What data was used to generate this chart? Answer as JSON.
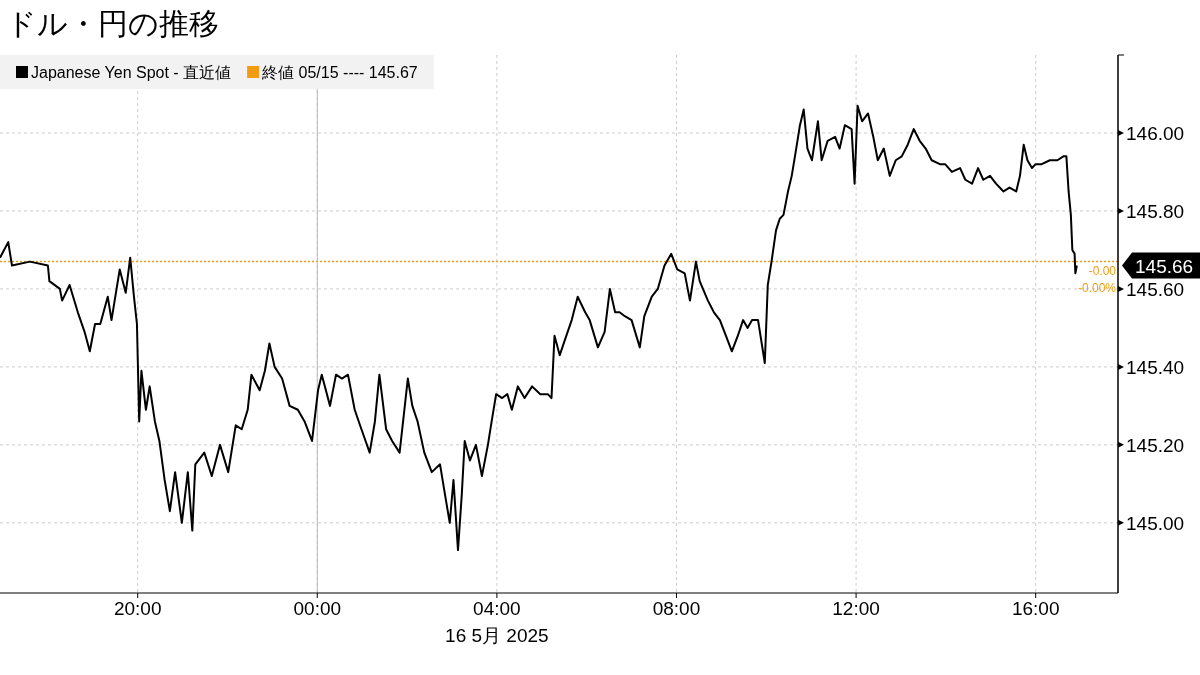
{
  "chart_data": {
    "type": "line",
    "title": "ドル・円の推移",
    "xlabel": "16 5月 2025",
    "xlim": [
      "2025-05-15T16:56",
      "2025-05-16T17:50"
    ],
    "ylim": [
      144.82,
      146.2
    ],
    "xticks": [
      {
        "value": "2025-05-15T20:00",
        "label": "20:00"
      },
      {
        "value": "2025-05-16T00:00",
        "label": "00:00"
      },
      {
        "value": "2025-05-16T04:00",
        "label": "04:00"
      },
      {
        "value": "2025-05-16T08:00",
        "label": "08:00"
      },
      {
        "value": "2025-05-16T12:00",
        "label": "12:00"
      },
      {
        "value": "2025-05-16T16:00",
        "label": "16:00"
      }
    ],
    "yticks": [
      {
        "value": 145,
        "label": "145.00"
      },
      {
        "value": 145.2,
        "label": "145.20"
      },
      {
        "value": 145.4,
        "label": "145.40"
      },
      {
        "value": 145.6,
        "label": "145.60"
      },
      {
        "value": 145.8,
        "label": "145.80"
      },
      {
        "value": 146,
        "label": "146.00"
      }
    ],
    "grid": true,
    "legend": "top left",
    "line_style": "solid",
    "marker": "none",
    "series": [
      {
        "name": "Japanese Yen Spot - 直近値",
        "color": "#000000",
        "x": [
          "2025-05-15T16:56",
          "2025-05-15T17:07",
          "2025-05-15T17:12",
          "2025-05-15T17:36",
          "2025-05-15T18:00",
          "2025-05-15T18:02",
          "2025-05-15T18:16",
          "2025-05-15T18:19",
          "2025-05-15T18:29",
          "2025-05-15T18:40",
          "2025-05-15T18:49",
          "2025-05-15T18:56",
          "2025-05-15T19:03",
          "2025-05-15T19:10",
          "2025-05-15T19:20",
          "2025-05-15T19:25",
          "2025-05-15T19:36",
          "2025-05-15T19:44",
          "2025-05-15T19:50",
          "2025-05-15T19:55",
          "2025-05-15T19:59",
          "2025-05-15T20:02",
          "2025-05-15T20:05",
          "2025-05-15T20:11",
          "2025-05-15T20:16",
          "2025-05-15T20:23",
          "2025-05-15T20:29",
          "2025-05-15T20:36",
          "2025-05-15T20:43",
          "2025-05-15T20:50",
          "2025-05-15T20:59",
          "2025-05-15T21:07",
          "2025-05-15T21:13",
          "2025-05-15T21:17",
          "2025-05-15T21:29",
          "2025-05-15T21:39",
          "2025-05-15T21:50",
          "2025-05-15T22:01",
          "2025-05-15T22:11",
          "2025-05-15T22:19",
          "2025-05-15T22:27",
          "2025-05-15T22:32",
          "2025-05-15T22:43",
          "2025-05-15T22:50",
          "2025-05-15T22:56",
          "2025-05-15T23:03",
          "2025-05-15T23:13",
          "2025-05-15T23:23",
          "2025-05-15T23:34",
          "2025-05-15T23:43",
          "2025-05-15T23:53",
          "2025-05-16T00:01",
          "2025-05-16T00:06",
          "2025-05-16T00:17",
          "2025-05-16T00:25",
          "2025-05-16T00:33",
          "2025-05-16T00:41",
          "2025-05-16T00:50",
          "2025-05-16T00:59",
          "2025-05-16T01:10",
          "2025-05-16T01:17",
          "2025-05-16T01:23",
          "2025-05-16T01:32",
          "2025-05-16T01:40",
          "2025-05-16T01:50",
          "2025-05-16T02:01",
          "2025-05-16T02:07",
          "2025-05-16T02:14",
          "2025-05-16T02:23",
          "2025-05-16T02:33",
          "2025-05-16T02:44",
          "2025-05-16T02:50",
          "2025-05-16T02:57",
          "2025-05-16T03:02",
          "2025-05-16T03:08",
          "2025-05-16T03:13",
          "2025-05-16T03:17",
          "2025-05-16T03:24",
          "2025-05-16T03:32",
          "2025-05-16T03:40",
          "2025-05-16T03:48",
          "2025-05-16T03:53",
          "2025-05-16T03:59",
          "2025-05-16T04:07",
          "2025-05-16T04:14",
          "2025-05-16T04:20",
          "2025-05-16T04:28",
          "2025-05-16T04:37",
          "2025-05-16T04:47",
          "2025-05-16T04:58",
          "2025-05-16T05:08",
          "2025-05-16T05:13",
          "2025-05-16T05:17",
          "2025-05-16T05:24",
          "2025-05-16T05:31",
          "2025-05-16T05:40",
          "2025-05-16T05:48",
          "2025-05-16T05:58",
          "2025-05-16T06:04",
          "2025-05-16T06:15",
          "2025-05-16T06:24",
          "2025-05-16T06:31",
          "2025-05-16T06:38",
          "2025-05-16T06:44",
          "2025-05-16T06:51",
          "2025-05-16T07:00",
          "2025-05-16T07:11",
          "2025-05-16T07:17",
          "2025-05-16T07:27",
          "2025-05-16T07:35",
          "2025-05-16T07:44",
          "2025-05-16T07:53",
          "2025-05-16T08:01",
          "2025-05-16T08:11",
          "2025-05-16T08:18",
          "2025-05-16T08:26",
          "2025-05-16T08:31",
          "2025-05-16T08:42",
          "2025-05-16T08:50",
          "2025-05-16T08:58",
          "2025-05-16T09:06",
          "2025-05-16T09:14",
          "2025-05-16T09:22",
          "2025-05-16T09:29",
          "2025-05-16T09:35",
          "2025-05-16T09:41",
          "2025-05-16T09:49",
          "2025-05-16T09:58",
          "2025-05-16T10:02",
          "2025-05-16T10:07",
          "2025-05-16T10:13",
          "2025-05-16T10:18",
          "2025-05-16T10:23",
          "2025-05-16T10:29",
          "2025-05-16T10:34",
          "2025-05-16T10:40",
          "2025-05-16T10:45",
          "2025-05-16T10:50",
          "2025-05-16T10:55",
          "2025-05-16T11:01",
          "2025-05-16T11:09",
          "2025-05-16T11:14",
          "2025-05-16T11:22",
          "2025-05-16T11:32",
          "2025-05-16T11:38",
          "2025-05-16T11:45",
          "2025-05-16T11:54",
          "2025-05-16T11:58",
          "2025-05-16T12:02",
          "2025-05-16T12:08",
          "2025-05-16T12:16",
          "2025-05-16T12:23",
          "2025-05-16T12:29",
          "2025-05-16T12:37",
          "2025-05-16T12:45",
          "2025-05-16T12:53",
          "2025-05-16T13:01",
          "2025-05-16T13:09",
          "2025-05-16T13:17",
          "2025-05-16T13:25",
          "2025-05-16T13:33",
          "2025-05-16T13:41",
          "2025-05-16T13:52",
          "2025-05-16T13:59",
          "2025-05-16T14:08",
          "2025-05-16T14:19",
          "2025-05-16T14:26",
          "2025-05-16T14:35",
          "2025-05-16T14:43",
          "2025-05-16T14:50",
          "2025-05-16T14:59",
          "2025-05-16T15:07",
          "2025-05-16T15:17",
          "2025-05-16T15:25",
          "2025-05-16T15:34",
          "2025-05-16T15:39",
          "2025-05-16T15:44",
          "2025-05-16T15:49",
          "2025-05-16T15:55",
          "2025-05-16T16:00",
          "2025-05-16T16:08",
          "2025-05-16T16:19",
          "2025-05-16T16:29",
          "2025-05-16T16:37",
          "2025-05-16T16:41",
          "2025-05-16T16:44",
          "2025-05-16T16:47",
          "2025-05-16T16:49",
          "2025-05-16T16:52",
          "2025-05-16T16:53",
          "2025-05-16T16:55"
        ],
        "values": [
          145.68,
          145.72,
          145.66,
          145.67,
          145.66,
          145.62,
          145.6,
          145.57,
          145.61,
          145.54,
          145.49,
          145.44,
          145.51,
          145.51,
          145.58,
          145.52,
          145.65,
          145.59,
          145.68,
          145.58,
          145.51,
          145.26,
          145.39,
          145.29,
          145.35,
          145.26,
          145.21,
          145.11,
          145.03,
          145.13,
          145.0,
          145.13,
          144.98,
          145.15,
          145.18,
          145.12,
          145.2,
          145.13,
          145.25,
          145.24,
          145.29,
          145.38,
          145.34,
          145.39,
          145.46,
          145.4,
          145.37,
          145.3,
          145.29,
          145.26,
          145.21,
          145.34,
          145.38,
          145.3,
          145.38,
          145.37,
          145.38,
          145.29,
          145.24,
          145.18,
          145.26,
          145.38,
          145.24,
          145.21,
          145.18,
          145.37,
          145.3,
          145.26,
          145.18,
          145.13,
          145.15,
          145.08,
          145.0,
          145.11,
          144.93,
          145.07,
          145.21,
          145.16,
          145.2,
          145.12,
          145.2,
          145.26,
          145.33,
          145.32,
          145.33,
          145.29,
          145.35,
          145.32,
          145.35,
          145.33,
          145.33,
          145.32,
          145.48,
          145.43,
          145.47,
          145.52,
          145.58,
          145.54,
          145.52,
          145.45,
          145.49,
          145.6,
          145.54,
          145.54,
          145.53,
          145.52,
          145.45,
          145.53,
          145.58,
          145.6,
          145.66,
          145.69,
          145.65,
          145.64,
          145.57,
          145.67,
          145.62,
          145.57,
          145.54,
          145.52,
          145.48,
          145.44,
          145.48,
          145.52,
          145.5,
          145.52,
          145.52,
          145.41,
          145.61,
          145.67,
          145.75,
          145.78,
          145.79,
          145.85,
          145.89,
          145.96,
          146.02,
          146.06,
          145.96,
          145.93,
          146.03,
          145.93,
          145.98,
          145.99,
          145.96,
          146.02,
          146.01,
          145.87,
          146.07,
          146.03,
          146.05,
          145.99,
          145.93,
          145.96,
          145.89,
          145.93,
          145.94,
          145.97,
          146.01,
          145.98,
          145.96,
          145.93,
          145.92,
          145.92,
          145.9,
          145.91,
          145.88,
          145.87,
          145.91,
          145.88,
          145.89,
          145.87,
          145.85,
          145.86,
          145.85,
          145.89,
          145.97,
          145.93,
          145.91,
          145.92,
          145.92,
          145.93,
          145.93,
          145.94,
          145.94,
          145.85,
          145.79,
          145.7,
          145.69,
          145.64,
          145.66
        ]
      }
    ],
    "ref_lines": [
      {
        "axis": "y",
        "value": 145.67,
        "label": "終値 05/15 ---- 145.67",
        "color": "#f39c12",
        "line_style": "dotted"
      },
      {
        "axis": "x",
        "value": "2025-05-16T00:00",
        "color": "#bbbbbb",
        "line_style": "solid"
      }
    ],
    "annotations": [
      "145.66",
      "-0.00",
      "-0.00%"
    ]
  }
}
